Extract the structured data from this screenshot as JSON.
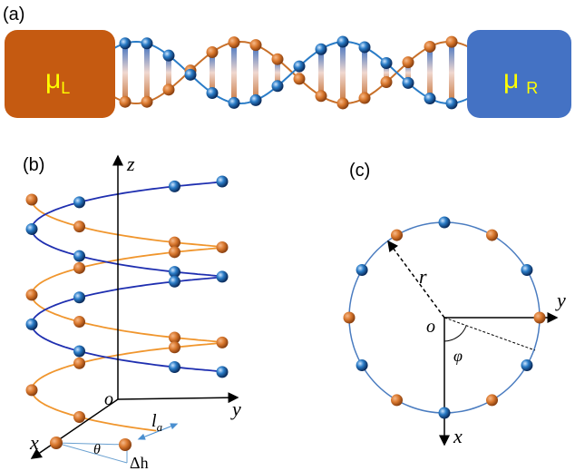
{
  "panel_a": {
    "label": "(a)",
    "left_reservoir": {
      "symbol": "μ",
      "subscript": "L"
    },
    "right_reservoir": {
      "symbol": "μ",
      "subscript": "R"
    }
  },
  "panel_b": {
    "label": "(b)",
    "axes": {
      "z": "z",
      "y": "y",
      "x": "x",
      "origin": "o"
    },
    "annotations": {
      "length": "l",
      "length_subscript": "a",
      "angle": "θ",
      "height_step": "Δh"
    }
  },
  "panel_c": {
    "label": "(c)",
    "radius": "r",
    "origin": "o",
    "axes": {
      "y": "y",
      "x": "x"
    },
    "angle": "φ"
  }
}
